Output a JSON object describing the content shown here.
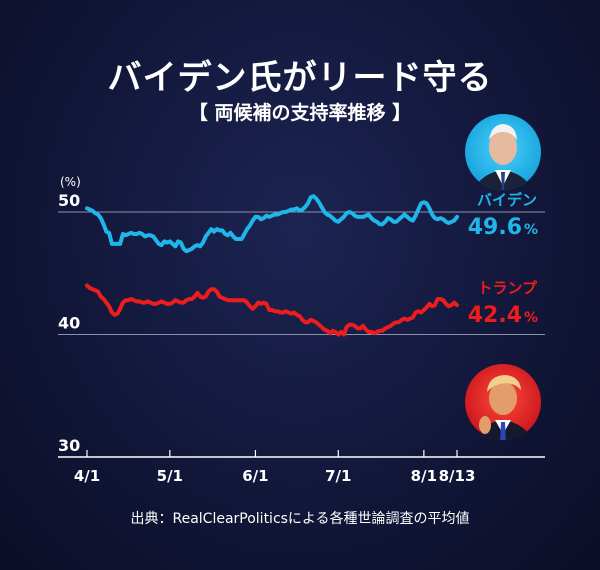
{
  "title": "バイデン氏がリード守る",
  "subtitle": "【 両候補の支持率推移 】",
  "source": "出典：RealClearPoliticsによる各種世論調査の平均値",
  "colors": {
    "biden": "#1fb6ea",
    "trump": "#ee1d1d",
    "grid": "#8c91aa",
    "text": "#ffffff"
  },
  "chart_data": {
    "type": "line",
    "unit_label": "(%)",
    "ylim": [
      30,
      50
    ],
    "y_ticks": [
      "30",
      "40",
      "50"
    ],
    "x_ticks": [
      {
        "label": "4/1",
        "day": 0
      },
      {
        "label": "5/1",
        "day": 30
      },
      {
        "label": "6/1",
        "day": 61
      },
      {
        "label": "7/1",
        "day": 91
      },
      {
        "label": "8/1",
        "day": 122
      },
      {
        "label": "8/13",
        "day": 134
      }
    ],
    "series": [
      {
        "name": "バイデン",
        "color": "#1fb6ea",
        "final_value": "49.6",
        "pct": "%",
        "points": [
          [
            0,
            50.3
          ],
          [
            1,
            50.2
          ],
          [
            2,
            50.1
          ],
          [
            3,
            49.9
          ],
          [
            4,
            49.8
          ],
          [
            5,
            49.5
          ],
          [
            6,
            49.0
          ],
          [
            7,
            48.4
          ],
          [
            8,
            48.3
          ],
          [
            9,
            47.4
          ],
          [
            10,
            47.4
          ],
          [
            11,
            47.4
          ],
          [
            12,
            47.4
          ],
          [
            13,
            48.2
          ],
          [
            14,
            48.1
          ],
          [
            15,
            48.2
          ],
          [
            16,
            48.3
          ],
          [
            17,
            48.2
          ],
          [
            18,
            48.2
          ],
          [
            19,
            48.3
          ],
          [
            20,
            48.2
          ],
          [
            21,
            48.0
          ],
          [
            22,
            48.1
          ],
          [
            23,
            48.1
          ],
          [
            24,
            48.0
          ],
          [
            25,
            47.7
          ],
          [
            26,
            47.4
          ],
          [
            27,
            47.3
          ],
          [
            28,
            47.6
          ],
          [
            29,
            47.5
          ],
          [
            30,
            47.6
          ],
          [
            31,
            47.4
          ],
          [
            32,
            47.2
          ],
          [
            33,
            47.6
          ],
          [
            34,
            47.5
          ],
          [
            35,
            47.0
          ],
          [
            36,
            46.8
          ],
          [
            37,
            46.9
          ],
          [
            38,
            47.0
          ],
          [
            39,
            47.2
          ],
          [
            40,
            47.3
          ],
          [
            41,
            47.2
          ],
          [
            42,
            47.5
          ],
          [
            43,
            48.0
          ],
          [
            44,
            48.3
          ],
          [
            45,
            48.6
          ],
          [
            46,
            48.4
          ],
          [
            47,
            48.6
          ],
          [
            48,
            48.5
          ],
          [
            49,
            48.5
          ],
          [
            50,
            48.2
          ],
          [
            51,
            48.1
          ],
          [
            52,
            48.3
          ],
          [
            53,
            48.0
          ],
          [
            54,
            47.8
          ],
          [
            55,
            47.8
          ],
          [
            56,
            47.8
          ],
          [
            57,
            48.2
          ],
          [
            58,
            48.6
          ],
          [
            59,
            48.9
          ],
          [
            60,
            49.3
          ],
          [
            61,
            49.6
          ],
          [
            62,
            49.6
          ],
          [
            63,
            49.4
          ],
          [
            64,
            49.5
          ],
          [
            65,
            49.7
          ],
          [
            66,
            49.6
          ],
          [
            67,
            49.7
          ],
          [
            68,
            49.8
          ],
          [
            69,
            49.8
          ],
          [
            70,
            49.9
          ],
          [
            71,
            50.0
          ],
          [
            72,
            50.0
          ],
          [
            73,
            50.1
          ],
          [
            74,
            50.2
          ],
          [
            75,
            50.2
          ],
          [
            76,
            50.3
          ],
          [
            77,
            50.1
          ],
          [
            78,
            50.2
          ],
          [
            79,
            50.4
          ],
          [
            80,
            50.7
          ],
          [
            81,
            51.2
          ],
          [
            82,
            51.3
          ],
          [
            83,
            51.1
          ],
          [
            84,
            50.8
          ],
          [
            85,
            50.4
          ],
          [
            86,
            50.0
          ],
          [
            87,
            49.8
          ],
          [
            88,
            49.7
          ],
          [
            89,
            49.5
          ],
          [
            90,
            49.3
          ],
          [
            91,
            49.2
          ],
          [
            92,
            49.4
          ],
          [
            93,
            49.6
          ],
          [
            94,
            49.9
          ],
          [
            95,
            50.0
          ],
          [
            96,
            49.9
          ],
          [
            97,
            49.7
          ],
          [
            98,
            49.6
          ],
          [
            99,
            49.6
          ],
          [
            100,
            49.6
          ],
          [
            101,
            49.7
          ],
          [
            102,
            49.8
          ],
          [
            103,
            49.5
          ],
          [
            104,
            49.3
          ],
          [
            105,
            49.2
          ],
          [
            106,
            49.0
          ],
          [
            107,
            49.0
          ],
          [
            108,
            49.2
          ],
          [
            109,
            49.5
          ],
          [
            110,
            49.4
          ],
          [
            111,
            49.2
          ],
          [
            112,
            49.2
          ],
          [
            113,
            49.4
          ],
          [
            114,
            49.6
          ],
          [
            115,
            49.8
          ],
          [
            116,
            49.6
          ],
          [
            117,
            49.4
          ],
          [
            118,
            49.3
          ],
          [
            119,
            49.7
          ],
          [
            120,
            50.2
          ],
          [
            121,
            50.7
          ],
          [
            122,
            50.8
          ],
          [
            123,
            50.7
          ],
          [
            124,
            50.3
          ],
          [
            125,
            49.8
          ],
          [
            126,
            49.5
          ],
          [
            127,
            49.4
          ],
          [
            128,
            49.5
          ],
          [
            129,
            49.4
          ],
          [
            130,
            49.2
          ],
          [
            131,
            49.1
          ],
          [
            132,
            49.2
          ],
          [
            133,
            49.3
          ],
          [
            134,
            49.6
          ]
        ]
      },
      {
        "name": "トランプ",
        "color": "#ee1d1d",
        "final_value": "42.4",
        "pct": "%",
        "points": [
          [
            0,
            44.0
          ],
          [
            1,
            43.8
          ],
          [
            2,
            43.7
          ],
          [
            3,
            43.6
          ],
          [
            4,
            43.5
          ],
          [
            5,
            43.1
          ],
          [
            6,
            42.9
          ],
          [
            7,
            42.6
          ],
          [
            8,
            42.3
          ],
          [
            9,
            41.8
          ],
          [
            10,
            41.6
          ],
          [
            11,
            41.7
          ],
          [
            12,
            42.1
          ],
          [
            13,
            42.6
          ],
          [
            14,
            42.8
          ],
          [
            15,
            42.8
          ],
          [
            16,
            42.9
          ],
          [
            17,
            42.8
          ],
          [
            18,
            42.7
          ],
          [
            19,
            42.7
          ],
          [
            20,
            42.6
          ],
          [
            21,
            42.6
          ],
          [
            22,
            42.7
          ],
          [
            23,
            42.6
          ],
          [
            24,
            42.5
          ],
          [
            25,
            42.5
          ],
          [
            26,
            42.6
          ],
          [
            27,
            42.7
          ],
          [
            28,
            42.6
          ],
          [
            29,
            42.5
          ],
          [
            30,
            42.5
          ],
          [
            31,
            42.6
          ],
          [
            32,
            42.8
          ],
          [
            33,
            42.7
          ],
          [
            34,
            42.6
          ],
          [
            35,
            42.6
          ],
          [
            36,
            42.8
          ],
          [
            37,
            42.9
          ],
          [
            38,
            42.9
          ],
          [
            39,
            43.1
          ],
          [
            40,
            43.4
          ],
          [
            41,
            43.1
          ],
          [
            42,
            43.0
          ],
          [
            43,
            43.1
          ],
          [
            44,
            43.5
          ],
          [
            45,
            43.7
          ],
          [
            46,
            43.7
          ],
          [
            47,
            43.5
          ],
          [
            48,
            43.1
          ],
          [
            49,
            43.0
          ],
          [
            50,
            42.9
          ],
          [
            51,
            42.8
          ],
          [
            52,
            42.8
          ],
          [
            53,
            42.8
          ],
          [
            54,
            42.8
          ],
          [
            55,
            42.8
          ],
          [
            56,
            42.8
          ],
          [
            57,
            42.8
          ],
          [
            58,
            42.6
          ],
          [
            59,
            42.3
          ],
          [
            60,
            42.1
          ],
          [
            61,
            42.3
          ],
          [
            62,
            42.6
          ],
          [
            63,
            42.5
          ],
          [
            64,
            42.6
          ],
          [
            65,
            42.5
          ],
          [
            66,
            42.0
          ],
          [
            67,
            42.0
          ],
          [
            68,
            41.9
          ],
          [
            69,
            41.9
          ],
          [
            70,
            41.8
          ],
          [
            71,
            41.8
          ],
          [
            72,
            41.9
          ],
          [
            73,
            41.8
          ],
          [
            74,
            41.7
          ],
          [
            75,
            41.8
          ],
          [
            76,
            41.6
          ],
          [
            77,
            41.5
          ],
          [
            78,
            41.2
          ],
          [
            79,
            41.0
          ],
          [
            80,
            41.0
          ],
          [
            81,
            41.2
          ],
          [
            82,
            41.1
          ],
          [
            83,
            41.0
          ],
          [
            84,
            40.8
          ],
          [
            85,
            40.6
          ],
          [
            86,
            40.4
          ],
          [
            87,
            40.3
          ],
          [
            88,
            40.1
          ],
          [
            89,
            40.3
          ],
          [
            90,
            40.2
          ],
          [
            91,
            40.0
          ],
          [
            92,
            40.2
          ],
          [
            93,
            40.0
          ],
          [
            94,
            40.6
          ],
          [
            95,
            40.8
          ],
          [
            96,
            40.8
          ],
          [
            97,
            40.7
          ],
          [
            98,
            40.5
          ],
          [
            99,
            40.5
          ],
          [
            100,
            40.7
          ],
          [
            101,
            40.4
          ],
          [
            102,
            40.2
          ],
          [
            103,
            40.2
          ],
          [
            104,
            40.1
          ],
          [
            105,
            40.2
          ],
          [
            106,
            40.3
          ],
          [
            107,
            40.3
          ],
          [
            108,
            40.5
          ],
          [
            109,
            40.6
          ],
          [
            110,
            40.7
          ],
          [
            111,
            40.9
          ],
          [
            112,
            41.0
          ],
          [
            113,
            41.0
          ],
          [
            114,
            41.2
          ],
          [
            115,
            41.3
          ],
          [
            116,
            41.2
          ],
          [
            117,
            41.3
          ],
          [
            118,
            41.4
          ],
          [
            119,
            41.8
          ],
          [
            120,
            41.9
          ],
          [
            121,
            41.8
          ],
          [
            122,
            42.0
          ],
          [
            123,
            42.2
          ],
          [
            124,
            42.5
          ],
          [
            125,
            42.3
          ],
          [
            126,
            42.4
          ],
          [
            127,
            42.9
          ],
          [
            128,
            42.9
          ],
          [
            129,
            42.8
          ],
          [
            130,
            42.5
          ],
          [
            131,
            42.3
          ],
          [
            132,
            42.4
          ],
          [
            133,
            42.6
          ],
          [
            134,
            42.4
          ]
        ]
      }
    ]
  }
}
